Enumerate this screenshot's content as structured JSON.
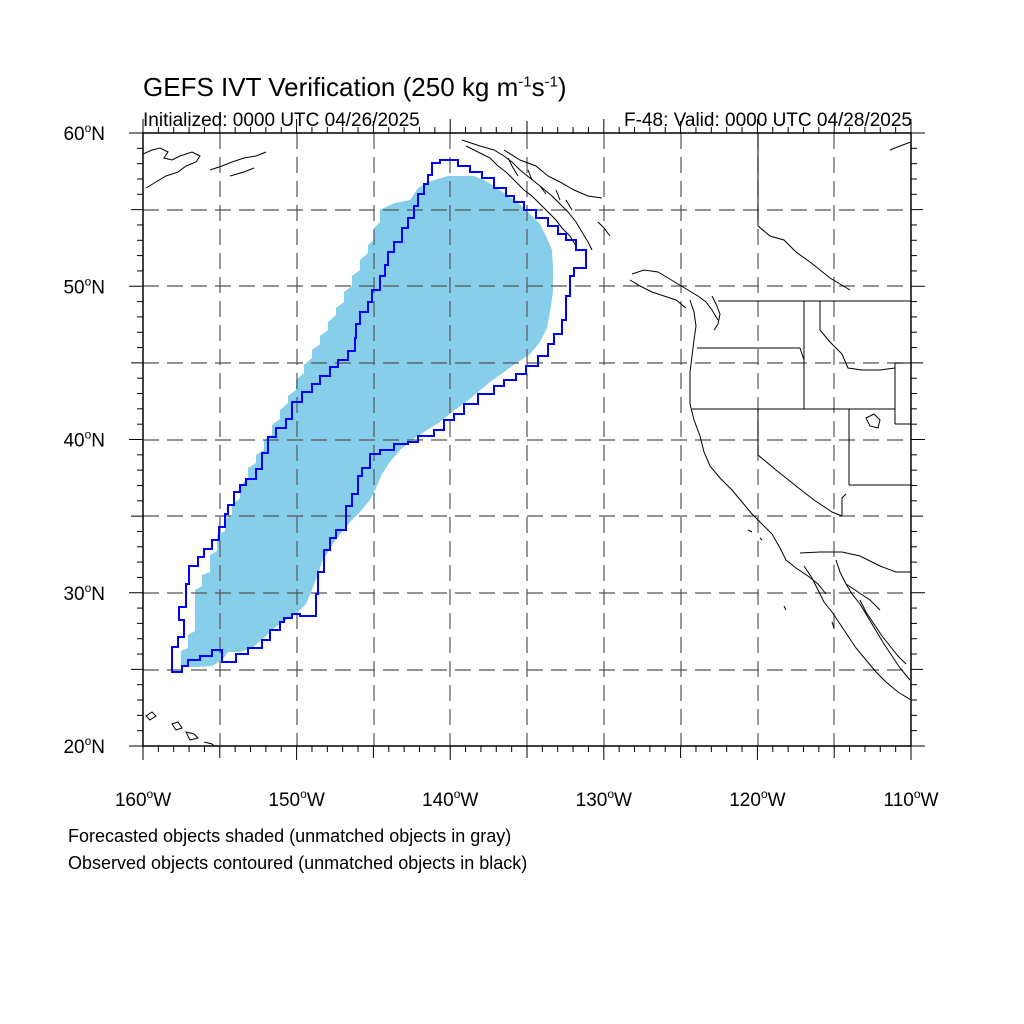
{
  "title": {
    "prefix": "GEFS IVT Verification (250 kg m",
    "exp1": "-1",
    "mid": "s",
    "exp2": "-1",
    "suffix": ")"
  },
  "initialized": "Initialized: 0000 UTC 04/26/2025",
  "valid": "F-48: Valid: 0000 UTC 04/28/2025",
  "footer": {
    "line1": "Forecasted objects shaded (unmatched objects in gray)",
    "line2": "Observed objects contoured (unmatched objects in black)"
  },
  "map": {
    "lon_range": [
      -160,
      -110
    ],
    "lat_range": [
      20,
      60
    ],
    "lon_ticks": [
      -160,
      -150,
      -140,
      -130,
      -120,
      -110
    ],
    "lon_labels": [
      "160",
      "150",
      "140",
      "130",
      "120",
      "110"
    ],
    "lat_ticks": [
      20,
      30,
      40,
      50,
      60
    ],
    "lat_labels": [
      "20",
      "30",
      "40",
      "50",
      "60"
    ],
    "lon_hemisphere": "W",
    "lat_hemisphere": "N",
    "degree_symbol": "o",
    "gridlines": "dashed every 5 degrees",
    "forecast_fill_color": "#87ceeb",
    "observed_contour_color": "#0000ff"
  }
}
